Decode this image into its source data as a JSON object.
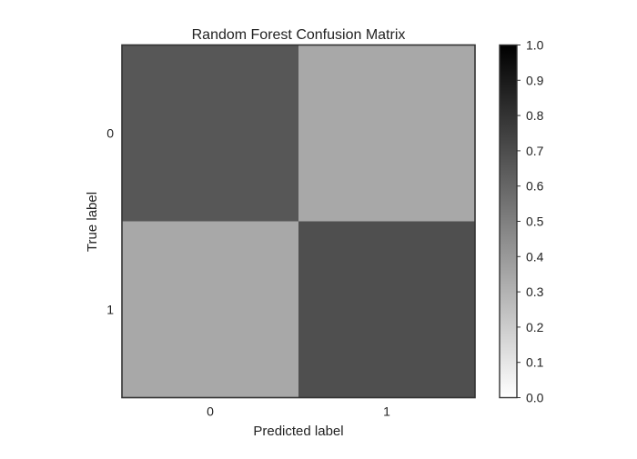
{
  "chart_data": {
    "type": "heatmap",
    "title": "Random Forest Confusion Matrix",
    "xlabel": "Predicted label",
    "ylabel": "True label",
    "x_categories": [
      "0",
      "1"
    ],
    "y_categories": [
      "0",
      "1"
    ],
    "values": [
      [
        0.66,
        0.34
      ],
      [
        0.34,
        0.69
      ]
    ],
    "colormap": "greys",
    "colorbar": {
      "range": [
        0.0,
        1.0
      ],
      "ticks": [
        "0.0",
        "0.1",
        "0.2",
        "0.3",
        "0.4",
        "0.5",
        "0.6",
        "0.7",
        "0.8",
        "0.9",
        "1.0"
      ]
    },
    "grid": false
  }
}
